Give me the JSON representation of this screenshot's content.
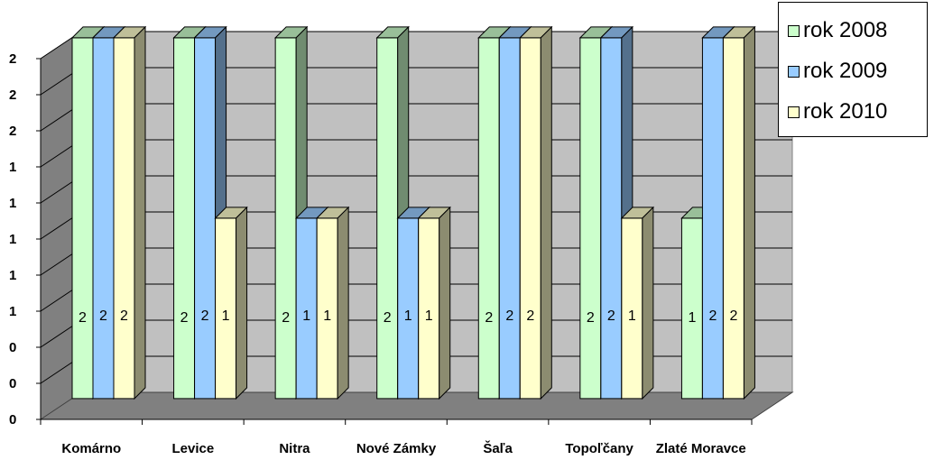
{
  "chart_data": {
    "type": "bar",
    "categories": [
      "Komárno",
      "Levice",
      "Nitra",
      "Nové Zámky",
      "Šaľa",
      "Topoľčany",
      "Zlaté Moravce"
    ],
    "series": [
      {
        "name": "rok 2008",
        "values": [
          2,
          2,
          2,
          2,
          2,
          2,
          1
        ],
        "labels": [
          "2",
          "2",
          "2",
          "2",
          "2",
          "2",
          "1"
        ],
        "color": "#CCFFCC"
      },
      {
        "name": "rok 2009",
        "values": [
          2,
          2,
          1,
          1,
          2,
          2,
          2
        ],
        "labels": [
          "2",
          "2",
          "1",
          "1",
          "2",
          "2",
          "2"
        ],
        "color": "#99CCFF"
      },
      {
        "name": "rok 2010",
        "values": [
          2,
          1,
          1,
          1,
          2,
          1,
          2
        ],
        "labels": [
          "2",
          "1",
          "1",
          "1",
          "2",
          "1",
          "2"
        ],
        "color": "#FFFFCC"
      }
    ],
    "y_tick_labels": [
      "0",
      "0",
      "0",
      "1",
      "1",
      "1",
      "1",
      "1",
      "2",
      "2",
      "2"
    ],
    "ylim": [
      0,
      2
    ],
    "grid": true,
    "legend_position": "top-right",
    "title": "",
    "xlabel": "",
    "ylabel": ""
  }
}
